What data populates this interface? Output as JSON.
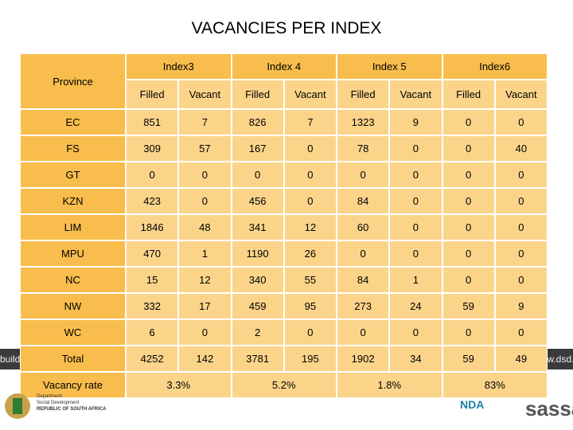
{
  "title": "VACANCIES PER INDEX",
  "table": {
    "province_label": "Province",
    "groups": [
      "Index3",
      "Index 4",
      "Index 5",
      "Index6"
    ],
    "subheaders": [
      "Filled",
      "Vacant",
      "Filled",
      "Vacant",
      "Filled",
      "Vacant",
      "Filled",
      "Vacant"
    ],
    "rows": [
      {
        "province": "EC",
        "values": [
          851,
          7,
          826,
          7,
          1323,
          9,
          0,
          0
        ]
      },
      {
        "province": "FS",
        "values": [
          309,
          57,
          167,
          0,
          78,
          0,
          0,
          40
        ]
      },
      {
        "province": "GT",
        "values": [
          0,
          0,
          0,
          0,
          0,
          0,
          0,
          0
        ]
      },
      {
        "province": "KZN",
        "values": [
          423,
          0,
          456,
          0,
          84,
          0,
          0,
          0
        ]
      },
      {
        "province": "LIM",
        "values": [
          1846,
          48,
          341,
          12,
          60,
          0,
          0,
          0
        ]
      },
      {
        "province": "MPU",
        "values": [
          470,
          1,
          1190,
          26,
          0,
          0,
          0,
          0
        ]
      },
      {
        "province": "NC",
        "values": [
          15,
          12,
          340,
          55,
          84,
          1,
          0,
          0
        ]
      },
      {
        "province": "NW",
        "values": [
          332,
          17,
          459,
          95,
          273,
          24,
          59,
          9
        ]
      },
      {
        "province": "WC",
        "values": [
          6,
          0,
          2,
          0,
          0,
          0,
          0,
          0
        ]
      },
      {
        "province": "Total",
        "values": [
          4252,
          142,
          3781,
          195,
          1902,
          34,
          59,
          49
        ]
      }
    ],
    "rate_label": "Vacancy rate",
    "rates": [
      "3.3%",
      "5.2%",
      "1.8%",
      "83%"
    ]
  },
  "footer": {
    "left_strip": "building",
    "right_strip": "www.dsd.gov",
    "department": [
      "Department:",
      "Social Development",
      "REPUBLIC OF SOUTH AFRICA"
    ],
    "nda": "NDA",
    "sassa": "sassa"
  }
}
